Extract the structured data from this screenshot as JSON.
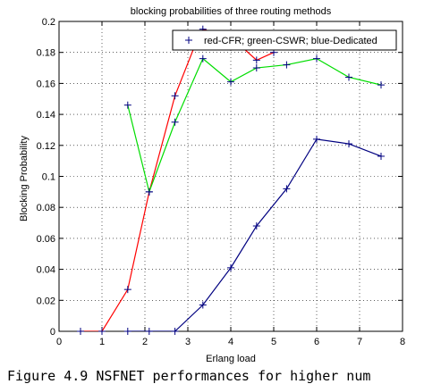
{
  "chart_data": {
    "type": "line",
    "title": "blocking probabilities of three routing methods",
    "xlabel": "Erlang load",
    "ylabel": "Blocking Probability",
    "xlim": [
      0,
      8
    ],
    "ylim": [
      0,
      0.2
    ],
    "xticks": [
      "0",
      "1",
      "2",
      "3",
      "4",
      "5",
      "6",
      "7",
      "8"
    ],
    "yticks": [
      "0",
      "0.02",
      "0.04",
      "0.06",
      "0.08",
      "0.1",
      "0.12",
      "0.14",
      "0.16",
      "0.18",
      "0.2"
    ],
    "grid": true,
    "legend": {
      "position": "top-right",
      "text": "red-CFR; green-CSWR; blue-Dedicated"
    },
    "series": [
      {
        "color": "#ff0000",
        "x": [
          0.5,
          1.0,
          1.6,
          2.1,
          2.7,
          3.2,
          3.35,
          4.0,
          4.6,
          5.0
        ],
        "y": [
          0,
          0,
          0.027,
          0.09,
          0.152,
          0.187,
          0.195,
          0.19,
          0.175,
          0.18
        ]
      },
      {
        "color": "#00dd00",
        "x": [
          1.6,
          2.1,
          2.7,
          3.35,
          4.0,
          4.6,
          5.3,
          6.0,
          6.75,
          7.5
        ],
        "y": [
          0.146,
          0.09,
          0.135,
          0.176,
          0.161,
          0.17,
          0.172,
          0.176,
          0.164,
          0.159
        ]
      },
      {
        "color": "#000080",
        "x": [
          1.6,
          2.1,
          2.7,
          3.35,
          4.0,
          4.6,
          5.3,
          6.0,
          6.75,
          7.5
        ],
        "y": [
          0,
          0,
          0,
          0.017,
          0.041,
          0.068,
          0.092,
          0.124,
          0.121,
          0.113
        ]
      }
    ]
  },
  "caption": "Figure 4.9 NSFNET performances for higher num"
}
